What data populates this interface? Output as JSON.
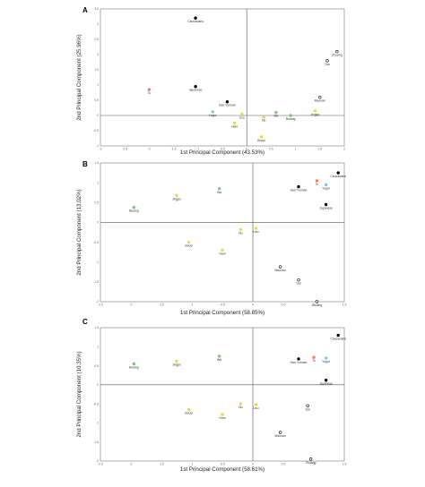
{
  "chart_data": [
    {
      "type": "scatter",
      "panel": "A",
      "xlabel": "1st Principal Component (43.53%)",
      "ylabel": "2nd Principal Component (25.96%)",
      "xlim": [
        -3,
        2
      ],
      "ylim": [
        -1,
        3.5
      ],
      "xticks": [
        -3,
        -2.5,
        -2,
        -1.5,
        -1,
        -0.5,
        0,
        0.5,
        1,
        1.5,
        2
      ],
      "yticks": [
        -1,
        -0.5,
        0,
        0.5,
        1,
        1.5,
        2,
        2.5,
        3,
        3.5
      ],
      "points": [
        {
          "label": "Caucasians",
          "x": -1.05,
          "y": 3.2,
          "color": "#000000",
          "filled": true
        },
        {
          "label": "Tu",
          "x": -2.0,
          "y": 0.85,
          "color": "#f08060",
          "filled": true
        },
        {
          "label": "Japanese",
          "x": -1.05,
          "y": 0.95,
          "color": "#000000",
          "filled": true
        },
        {
          "label": "Han-Yunnan",
          "x": -0.4,
          "y": 0.45,
          "color": "#000000",
          "filled": true
        },
        {
          "label": "Yugur",
          "x": -0.7,
          "y": 0.12,
          "color": "#8fbcd8",
          "filled": true
        },
        {
          "label": "Lisu",
          "x": -0.1,
          "y": 0.05,
          "color": "#e8d84a",
          "filled": true
        },
        {
          "label": "Nu",
          "x": 0.35,
          "y": -0.05,
          "color": "#e8d84a",
          "filled": true
        },
        {
          "label": "Hani",
          "x": -0.25,
          "y": -0.25,
          "color": "#e8d84a",
          "filled": true
        },
        {
          "label": "Bouyi",
          "x": 0.3,
          "y": -0.7,
          "color": "#e8d84a",
          "filled": true
        },
        {
          "label": "Wa",
          "x": 0.6,
          "y": 0.1,
          "color": "#7dc47d",
          "filled": true
        },
        {
          "label": "Bulang",
          "x": 0.9,
          "y": 0.0,
          "color": "#7dc47d",
          "filled": true
        },
        {
          "label": "Jingpo",
          "x": 1.4,
          "y": 0.15,
          "color": "#e8d84a",
          "filled": true
        },
        {
          "label": "Dai",
          "x": 1.65,
          "y": 1.8,
          "color": "#000000",
          "filled": false
        },
        {
          "label": "Zhuang",
          "x": 1.85,
          "y": 2.1,
          "color": "#000000",
          "filled": false
        },
        {
          "label": "Maonan",
          "x": 1.5,
          "y": 0.6,
          "color": "#000000",
          "filled": false
        }
      ]
    },
    {
      "type": "scatter",
      "panel": "B",
      "xlabel": "1st Principal Component (58.85%)",
      "ylabel": "2nd Principal Component (13.02%)",
      "xlim": [
        -2.5,
        1.5
      ],
      "ylim": [
        -2,
        1.5
      ],
      "xticks": [
        -2.5,
        -2,
        -1.5,
        -1,
        -0.5,
        0,
        0.5,
        1,
        1.5
      ],
      "yticks": [
        -2,
        -1.5,
        -1,
        -0.5,
        0,
        0.5,
        1,
        1.5
      ],
      "points": [
        {
          "label": "Caucasians",
          "x": 1.4,
          "y": 1.25,
          "color": "#000000",
          "filled": true
        },
        {
          "label": "Tu",
          "x": 1.05,
          "y": 1.05,
          "color": "#f08060",
          "filled": true
        },
        {
          "label": "Yugur",
          "x": 1.2,
          "y": 0.95,
          "color": "#8fbcd8",
          "filled": true
        },
        {
          "label": "Han-Yunnan",
          "x": 0.75,
          "y": 0.9,
          "color": "#000000",
          "filled": true
        },
        {
          "label": "Japanese",
          "x": 1.2,
          "y": 0.45,
          "color": "#000000",
          "filled": true
        },
        {
          "label": "Bulang",
          "x": -1.95,
          "y": 0.38,
          "color": "#7dc47d",
          "filled": true
        },
        {
          "label": "Jingpo",
          "x": -1.25,
          "y": 0.68,
          "color": "#e8d84a",
          "filled": true
        },
        {
          "label": "Wa",
          "x": -0.55,
          "y": 0.85,
          "color": "#7dc47d",
          "filled": true
        },
        {
          "label": "Nu",
          "x": -0.2,
          "y": -0.18,
          "color": "#e8d84a",
          "filled": true
        },
        {
          "label": "Lisu",
          "x": 0.05,
          "y": -0.15,
          "color": "#e8d84a",
          "filled": true
        },
        {
          "label": "Bouyi",
          "x": -1.05,
          "y": -0.5,
          "color": "#e8d84a",
          "filled": true
        },
        {
          "label": "Hani",
          "x": -0.5,
          "y": -0.7,
          "color": "#e8d84a",
          "filled": true
        },
        {
          "label": "Maonan",
          "x": 0.45,
          "y": -1.12,
          "color": "#000000",
          "filled": false
        },
        {
          "label": "Dai",
          "x": 0.75,
          "y": -1.45,
          "color": "#000000",
          "filled": false
        },
        {
          "label": "Zhuang",
          "x": 1.05,
          "y": -2.0,
          "color": "#000000",
          "filled": false
        }
      ]
    },
    {
      "type": "scatter",
      "panel": "C",
      "xlabel": "1st Principal Component (58.61%)",
      "ylabel": "2nd Principal Component (10.35%)",
      "xlim": [
        -2.5,
        1.5
      ],
      "ylim": [
        -2,
        1.5
      ],
      "xticks": [
        -2.5,
        -2,
        -1.5,
        -1,
        -0.5,
        0,
        0.5,
        1,
        1.5
      ],
      "yticks": [
        -2,
        -1.5,
        -1,
        -0.5,
        0,
        0.5,
        1,
        1.5
      ],
      "points": [
        {
          "label": "Caucasians",
          "x": 1.4,
          "y": 1.3,
          "color": "#000000",
          "filled": true
        },
        {
          "label": "Han-Yunnan",
          "x": 0.75,
          "y": 0.68,
          "color": "#000000",
          "filled": true
        },
        {
          "label": "Tu",
          "x": 1.0,
          "y": 0.72,
          "color": "#f08060",
          "filled": true
        },
        {
          "label": "Yugur",
          "x": 1.2,
          "y": 0.7,
          "color": "#8fbcd8",
          "filled": true
        },
        {
          "label": "Japanese",
          "x": 1.2,
          "y": 0.12,
          "color": "#000000",
          "filled": true
        },
        {
          "label": "Bulang",
          "x": -1.95,
          "y": 0.55,
          "color": "#7dc47d",
          "filled": true
        },
        {
          "label": "Jingpo",
          "x": -1.25,
          "y": 0.62,
          "color": "#e8d84a",
          "filled": true
        },
        {
          "label": "Wa",
          "x": -0.55,
          "y": 0.75,
          "color": "#7dc47d",
          "filled": true
        },
        {
          "label": "Bouyi",
          "x": -1.05,
          "y": -0.65,
          "color": "#e8d84a",
          "filled": true
        },
        {
          "label": "Hani",
          "x": -0.5,
          "y": -0.78,
          "color": "#e8d84a",
          "filled": true
        },
        {
          "label": "Nu",
          "x": -0.2,
          "y": -0.5,
          "color": "#e8d84a",
          "filled": true
        },
        {
          "label": "Lisu",
          "x": 0.05,
          "y": -0.52,
          "color": "#e8d84a",
          "filled": true
        },
        {
          "label": "Dai",
          "x": 0.9,
          "y": -0.55,
          "color": "#000000",
          "filled": false
        },
        {
          "label": "Maonan",
          "x": 0.45,
          "y": -1.25,
          "color": "#000000",
          "filled": false
        },
        {
          "label": "Zhuang",
          "x": 0.95,
          "y": -1.95,
          "color": "#000000",
          "filled": false
        }
      ]
    }
  ]
}
